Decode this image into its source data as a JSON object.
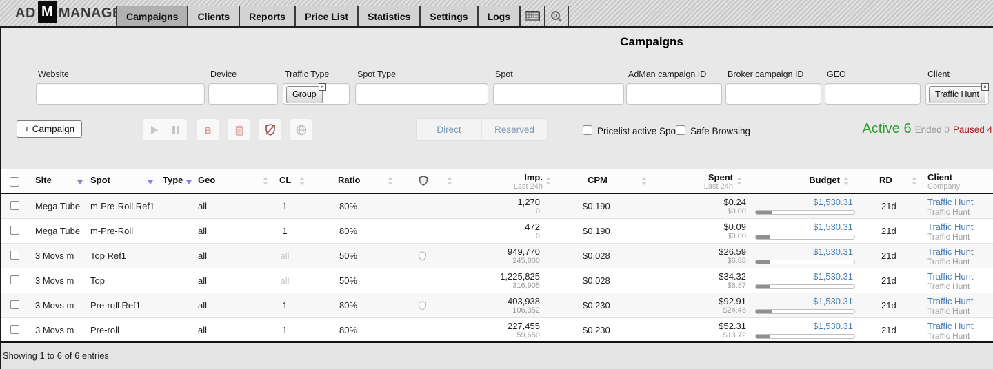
{
  "nav": {
    "logo": {
      "prefix": "AD",
      "m": "M",
      "suffix": "MANAGER"
    },
    "tabs": [
      {
        "label": "Campaigns",
        "active": true
      },
      {
        "label": "Clients",
        "active": false
      },
      {
        "label": "Reports",
        "active": false
      },
      {
        "label": "Price List",
        "active": false
      },
      {
        "label": "Statistics",
        "active": false
      },
      {
        "label": "Settings",
        "active": false
      },
      {
        "label": "Logs",
        "active": false
      }
    ]
  },
  "page": {
    "title": "Campaigns"
  },
  "filters": [
    {
      "label": "Website",
      "value": "",
      "chip": null
    },
    {
      "label": "Device",
      "value": "",
      "chip": null
    },
    {
      "label": "Traffic Type",
      "value": "",
      "chip": "Group"
    },
    {
      "label": "Spot Type",
      "value": "",
      "chip": null
    },
    {
      "label": "Spot",
      "value": "",
      "chip": null
    },
    {
      "label": "AdMan campaign ID",
      "value": "",
      "chip": null
    },
    {
      "label": "Broker campaign ID",
      "value": "",
      "chip": null
    },
    {
      "label": "GEO",
      "value": "",
      "chip": null
    },
    {
      "label": "Client",
      "value": "",
      "chip": "Traffic Hunt"
    }
  ],
  "chip_close_glyph": "×",
  "toolbar": {
    "campaign_button": "+ Campaign",
    "direct_button": "Direct",
    "reserved_button": "Reserved",
    "checkboxes": [
      {
        "label": "Pricelist active Spots",
        "checked": false
      },
      {
        "label": "Safe Browsing",
        "checked": false
      }
    ],
    "status": {
      "active_label": "Active",
      "active_count": "6",
      "ended_label": "Ended",
      "ended_count": "0",
      "paused_label": "Paused",
      "paused_count": "4"
    }
  },
  "table": {
    "headers": {
      "site": "Site",
      "spot": "Spot",
      "type": "Type",
      "geo": "Geo",
      "cl": "CL",
      "ratio": "Ratio",
      "imp": "Imp.",
      "imp_sub": "Last 24h",
      "cpm": "CPM",
      "spent": "Spent",
      "spent_sub": "Last 24h",
      "budget": "Budget",
      "rd": "RD",
      "client": "Client",
      "client_sub": "Company"
    },
    "rows": [
      {
        "site": "Mega Tube",
        "spot": "m-Pre-Roll Ref1",
        "geo": "all",
        "cl": "1",
        "ratio": "80%",
        "shield": false,
        "imp": "1,270",
        "imp_sub": "0",
        "cpm": "$0.190",
        "spent": "$0.24",
        "spent_sub": "$0.00",
        "budget": "$1,530.31",
        "progress_pct": 16,
        "rd": "21d",
        "client": "Traffic Hunt",
        "company": "Traffic Hunt"
      },
      {
        "site": "Mega Tube",
        "spot": "m-Pre-Roll",
        "geo": "all",
        "cl": "1",
        "ratio": "80%",
        "shield": false,
        "imp": "472",
        "imp_sub": "0",
        "cpm": "$0.190",
        "spent": "$0.09",
        "spent_sub": "$0.00",
        "budget": "$1,530.31",
        "progress_pct": 15,
        "rd": "21d",
        "client": "Traffic Hunt",
        "company": "Traffic Hunt"
      },
      {
        "site": "3 Movs m",
        "spot": "Top Ref1",
        "geo": "all",
        "cl": "all",
        "ratio": "50%",
        "shield": true,
        "imp": "949,770",
        "imp_sub": "245,800",
        "cpm": "$0.028",
        "spent": "$26.59",
        "spent_sub": "$6.88",
        "budget": "$1,530.31",
        "progress_pct": 15,
        "rd": "21d",
        "client": "Traffic Hunt",
        "company": "Traffic Hunt"
      },
      {
        "site": "3 Movs m",
        "spot": "Top",
        "geo": "all",
        "cl": "all",
        "ratio": "50%",
        "shield": false,
        "imp": "1,225,825",
        "imp_sub": "316,905",
        "cpm": "$0.028",
        "spent": "$34.32",
        "spent_sub": "$8.87",
        "budget": "$1,530.31",
        "progress_pct": 15,
        "rd": "21d",
        "client": "Traffic Hunt",
        "company": "Traffic Hunt"
      },
      {
        "site": "3 Movs m",
        "spot": "Pre-roll Ref1",
        "geo": "all",
        "cl": "1",
        "ratio": "80%",
        "shield": true,
        "imp": "403,938",
        "imp_sub": "106,352",
        "cpm": "$0.230",
        "spent": "$92.91",
        "spent_sub": "$24.46",
        "budget": "$1,530.31",
        "progress_pct": 16,
        "rd": "21d",
        "client": "Traffic Hunt",
        "company": "Traffic Hunt"
      },
      {
        "site": "3 Movs m",
        "spot": "Pre-roll",
        "geo": "all",
        "cl": "1",
        "ratio": "80%",
        "shield": false,
        "imp": "227,455",
        "imp_sub": "59,650",
        "cpm": "$0.230",
        "spent": "$52.31",
        "spent_sub": "$13.72",
        "budget": "$1,530.31",
        "progress_pct": 15,
        "rd": "21d",
        "client": "Traffic Hunt",
        "company": "Traffic Hunt"
      }
    ]
  },
  "footer": {
    "text": "Showing 1 to 6 of 6 entries"
  },
  "colors": {
    "link": "#4a7eb5",
    "active_green": "#2aa02a",
    "paused_red": "#a32222",
    "ended_gray": "#9a9a9a"
  }
}
